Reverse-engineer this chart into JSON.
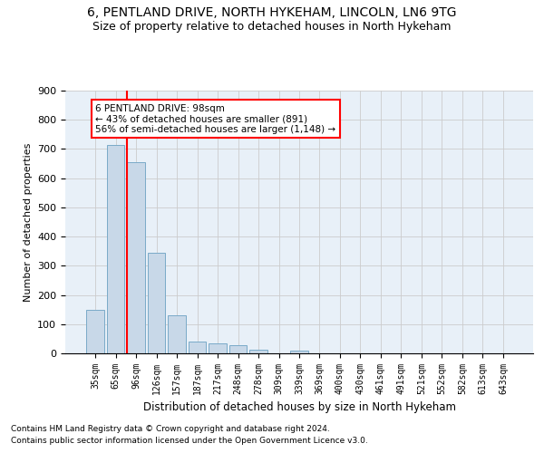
{
  "title": "6, PENTLAND DRIVE, NORTH HYKEHAM, LINCOLN, LN6 9TG",
  "subtitle": "Size of property relative to detached houses in North Hykeham",
  "xlabel": "Distribution of detached houses by size in North Hykeham",
  "ylabel": "Number of detached properties",
  "footnote1": "Contains HM Land Registry data © Crown copyright and database right 2024.",
  "footnote2": "Contains public sector information licensed under the Open Government Licence v3.0.",
  "categories": [
    "35sqm",
    "65sqm",
    "96sqm",
    "126sqm",
    "157sqm",
    "187sqm",
    "217sqm",
    "248sqm",
    "278sqm",
    "309sqm",
    "339sqm",
    "369sqm",
    "400sqm",
    "430sqm",
    "461sqm",
    "491sqm",
    "521sqm",
    "552sqm",
    "582sqm",
    "613sqm",
    "643sqm"
  ],
  "values": [
    150,
    715,
    655,
    345,
    130,
    40,
    35,
    28,
    12,
    0,
    10,
    0,
    0,
    0,
    0,
    0,
    0,
    0,
    0,
    0,
    0
  ],
  "bar_color": "#c8d8e8",
  "bar_edge_color": "#7aaac8",
  "red_line_index": 2,
  "annotation_text": "6 PENTLAND DRIVE: 98sqm\n← 43% of detached houses are smaller (891)\n56% of semi-detached houses are larger (1,148) →",
  "annotation_box_color": "white",
  "annotation_box_edge_color": "red",
  "red_line_color": "red",
  "ylim": [
    0,
    900
  ],
  "yticks": [
    0,
    100,
    200,
    300,
    400,
    500,
    600,
    700,
    800,
    900
  ],
  "grid_color": "#cccccc",
  "bg_color": "#e8f0f8",
  "title_fontsize": 10,
  "subtitle_fontsize": 9,
  "footnote_fontsize": 6.5
}
